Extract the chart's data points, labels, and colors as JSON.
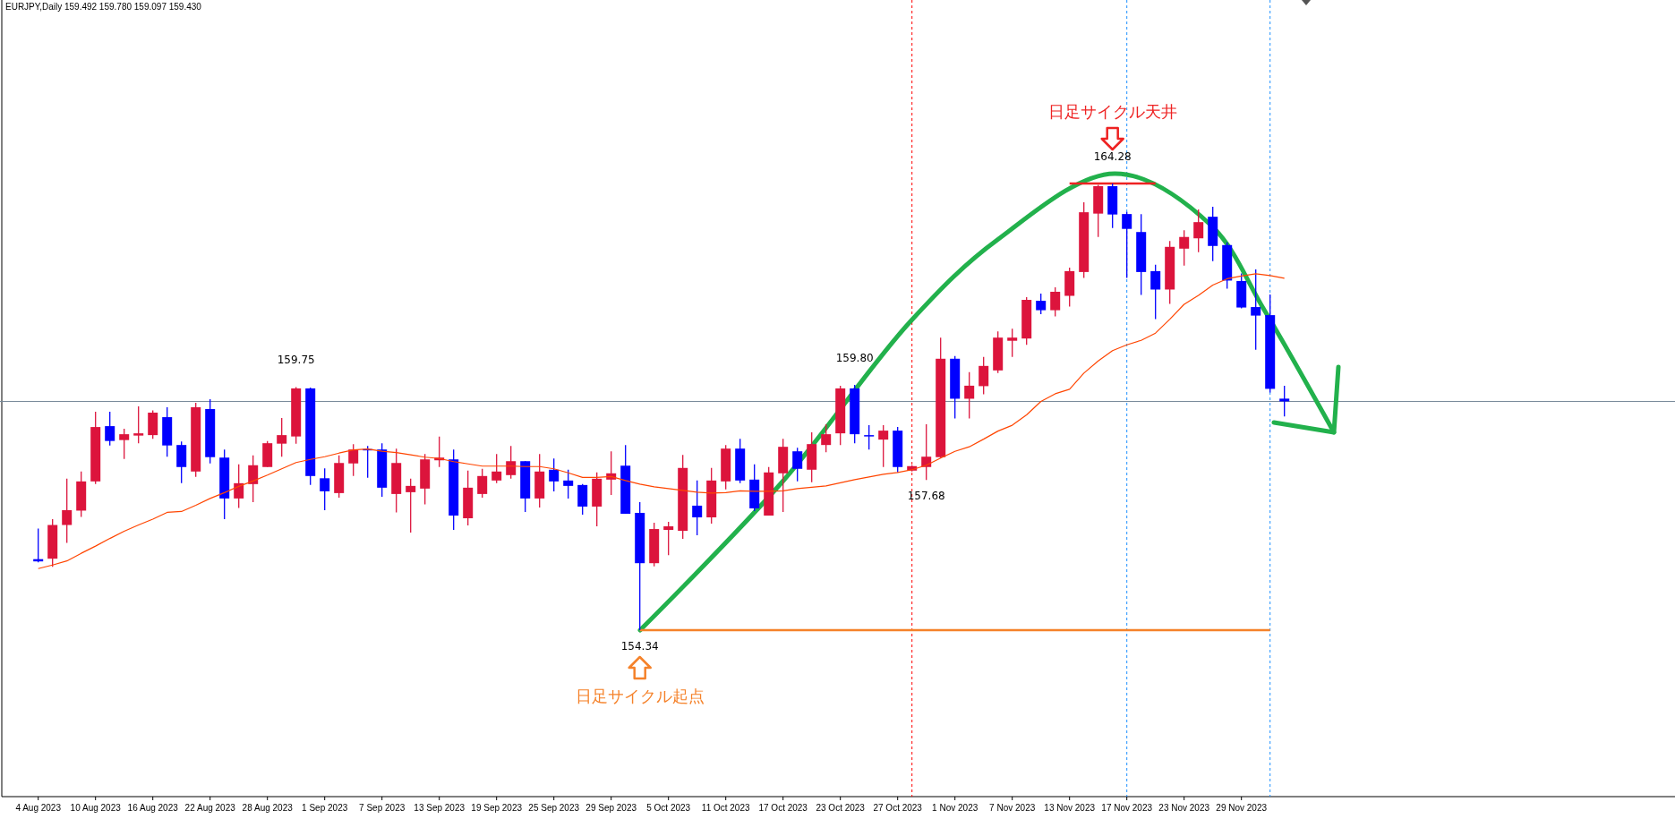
{
  "chart_data": {
    "type": "candlestick",
    "title": "EURJPY,Daily  159.492 159.780 159.097 159.430",
    "categories": [
      "4 Aug 2023",
      null,
      null,
      null,
      "10 Aug 2023",
      null,
      null,
      null,
      "16 Aug 2023",
      null,
      null,
      null,
      "22 Aug 2023",
      null,
      null,
      null,
      "28 Aug 2023",
      null,
      null,
      null,
      "1 Sep 2023",
      null,
      null,
      null,
      "7 Sep 2023",
      null,
      null,
      null,
      "13 Sep 2023",
      null,
      null,
      null,
      "19 Sep 2023",
      null,
      null,
      null,
      "25 Sep 2023",
      null,
      null,
      null,
      "29 Sep 2023",
      null,
      null,
      null,
      "5 Oct 2023",
      null,
      null,
      null,
      "11 Oct 2023",
      null,
      null,
      null,
      "17 Oct 2023",
      null,
      null,
      null,
      "23 Oct 2023",
      null,
      null,
      null,
      "27 Oct 2023",
      null,
      null,
      null,
      "1 Nov 2023",
      null,
      null,
      null,
      "7 Nov 2023",
      null,
      null,
      null,
      "13 Nov 2023",
      null,
      null,
      null,
      "17 Nov 2023",
      null,
      null,
      null,
      "23 Nov 2023",
      null,
      null,
      null,
      "29 Nov 2023",
      null,
      null,
      null
    ],
    "ohlc": [
      [
        155.92,
        156.6,
        155.85,
        155.87
      ],
      [
        155.93,
        156.81,
        155.75,
        156.68
      ],
      [
        156.68,
        157.71,
        156.28,
        157.01
      ],
      [
        157.0,
        157.87,
        156.86,
        157.65
      ],
      [
        157.65,
        159.2,
        157.59,
        158.86
      ],
      [
        158.88,
        159.2,
        158.45,
        158.55
      ],
      [
        158.57,
        158.82,
        158.15,
        158.7
      ],
      [
        158.67,
        159.32,
        158.5,
        158.72
      ],
      [
        158.68,
        159.23,
        158.6,
        159.18
      ],
      [
        159.08,
        159.3,
        158.2,
        158.45
      ],
      [
        158.46,
        158.54,
        157.61,
        157.97
      ],
      [
        157.87,
        159.4,
        157.75,
        159.3
      ],
      [
        159.26,
        159.48,
        158.05,
        158.19
      ],
      [
        158.18,
        158.36,
        156.81,
        157.27
      ],
      [
        157.27,
        158.03,
        157.06,
        157.61
      ],
      [
        157.59,
        158.23,
        157.19,
        158.01
      ],
      [
        157.97,
        158.55,
        157.97,
        158.5
      ],
      [
        158.49,
        159.06,
        158.2,
        158.68
      ],
      [
        158.65,
        159.75,
        158.49,
        159.72
      ],
      [
        159.72,
        159.74,
        157.57,
        157.77
      ],
      [
        157.72,
        157.94,
        157.01,
        157.43
      ],
      [
        157.39,
        158.23,
        157.29,
        158.06
      ],
      [
        158.05,
        158.48,
        157.77,
        158.36
      ],
      [
        158.37,
        158.44,
        157.73,
        158.34
      ],
      [
        158.36,
        158.5,
        157.31,
        157.51
      ],
      [
        157.37,
        158.38,
        156.96,
        158.06
      ],
      [
        157.41,
        157.71,
        156.51,
        157.55
      ],
      [
        157.49,
        158.26,
        157.14,
        158.14
      ],
      [
        158.12,
        158.65,
        157.97,
        158.18
      ],
      [
        158.14,
        158.36,
        156.57,
        156.89
      ],
      [
        156.83,
        157.89,
        156.67,
        157.51
      ],
      [
        157.37,
        157.93,
        157.29,
        157.77
      ],
      [
        157.67,
        158.26,
        157.61,
        157.87
      ],
      [
        157.79,
        158.44,
        157.71,
        158.1
      ],
      [
        158.1,
        158.1,
        156.97,
        157.27
      ],
      [
        157.27,
        158.26,
        157.07,
        157.87
      ],
      [
        157.91,
        158.16,
        157.43,
        157.65
      ],
      [
        157.67,
        157.91,
        157.27,
        157.55
      ],
      [
        157.57,
        157.59,
        156.91,
        157.09
      ],
      [
        157.09,
        157.85,
        156.65,
        157.71
      ],
      [
        157.69,
        158.32,
        157.35,
        157.83
      ],
      [
        158.0,
        158.46,
        156.93,
        156.93
      ],
      [
        156.95,
        157.19,
        154.34,
        155.83
      ],
      [
        155.83,
        156.73,
        155.76,
        156.59
      ],
      [
        156.57,
        156.75,
        156.01,
        156.65
      ],
      [
        156.55,
        158.24,
        156.37,
        157.95
      ],
      [
        157.11,
        157.67,
        156.45,
        156.85
      ],
      [
        156.85,
        157.95,
        156.71,
        157.67
      ],
      [
        157.65,
        158.46,
        157.47,
        158.38
      ],
      [
        158.38,
        158.6,
        157.61,
        157.67
      ],
      [
        157.69,
        158.03,
        156.99,
        157.05
      ],
      [
        156.89,
        157.97,
        156.89,
        157.85
      ],
      [
        157.83,
        158.6,
        156.97,
        158.42
      ],
      [
        158.32,
        158.4,
        157.65,
        157.93
      ],
      [
        157.91,
        158.74,
        157.63,
        158.48
      ],
      [
        158.46,
        158.92,
        158.3,
        158.7
      ],
      [
        158.72,
        159.78,
        158.46,
        159.72
      ],
      [
        159.72,
        159.8,
        158.5,
        158.7
      ],
      [
        158.68,
        158.9,
        158.36,
        158.67
      ],
      [
        158.58,
        158.9,
        157.97,
        158.78
      ],
      [
        158.78,
        158.86,
        157.85,
        157.97
      ],
      [
        157.89,
        158.01,
        157.87,
        157.99
      ],
      [
        157.97,
        158.92,
        157.68,
        158.2
      ],
      [
        158.19,
        160.85,
        158.17,
        160.38
      ],
      [
        160.38,
        160.44,
        159.05,
        159.49
      ],
      [
        159.49,
        160.08,
        159.05,
        159.78
      ],
      [
        159.77,
        160.42,
        159.59,
        160.22
      ],
      [
        160.12,
        160.99,
        160.06,
        160.85
      ],
      [
        160.78,
        161.05,
        160.42,
        160.85
      ],
      [
        160.83,
        161.75,
        160.69,
        161.69
      ],
      [
        161.67,
        161.83,
        161.37,
        161.46
      ],
      [
        161.46,
        161.97,
        161.32,
        161.87
      ],
      [
        161.78,
        162.41,
        161.54,
        162.33
      ],
      [
        162.31,
        163.86,
        162.18,
        163.64
      ],
      [
        163.61,
        164.25,
        163.09,
        164.22
      ],
      [
        164.22,
        164.28,
        163.29,
        163.59
      ],
      [
        163.6,
        163.65,
        162.18,
        163.27
      ],
      [
        163.2,
        163.6,
        161.8,
        162.31
      ],
      [
        162.33,
        162.47,
        161.26,
        161.92
      ],
      [
        161.92,
        163.0,
        161.6,
        162.87
      ],
      [
        162.83,
        163.24,
        162.45,
        163.09
      ],
      [
        163.06,
        163.7,
        162.75,
        163.42
      ],
      [
        163.54,
        163.76,
        162.55,
        162.89
      ],
      [
        162.91,
        162.97,
        161.94,
        162.12
      ],
      [
        162.11,
        162.28,
        161.5,
        161.52
      ],
      [
        161.53,
        162.37,
        160.58,
        161.34
      ],
      [
        161.35,
        161.81,
        159.63,
        159.71
      ],
      [
        159.492,
        159.78,
        159.097,
        159.43
      ]
    ],
    "colors": [
      "#0000ff",
      "#dc143c",
      "#dc143c",
      "#dc143c",
      "#dc143c",
      "#0000ff",
      "#dc143c",
      "#dc143c",
      "#dc143c",
      "#0000ff",
      "#0000ff",
      "#dc143c",
      "#0000ff",
      "#0000ff",
      "#dc143c",
      "#dc143c",
      "#dc143c",
      "#dc143c",
      "#dc143c",
      "#0000ff",
      "#0000ff",
      "#dc143c",
      "#dc143c",
      "#0000ff",
      "#0000ff",
      "#dc143c",
      "#dc143c",
      "#dc143c",
      "#dc143c",
      "#0000ff",
      "#dc143c",
      "#dc143c",
      "#dc143c",
      "#dc143c",
      "#0000ff",
      "#dc143c",
      "#0000ff",
      "#0000ff",
      "#0000ff",
      "#dc143c",
      "#dc143c",
      "#0000ff",
      "#0000ff",
      "#dc143c",
      "#dc143c",
      "#dc143c",
      "#0000ff",
      "#dc143c",
      "#dc143c",
      "#0000ff",
      "#0000ff",
      "#dc143c",
      "#dc143c",
      "#0000ff",
      "#dc143c",
      "#dc143c",
      "#dc143c",
      "#0000ff",
      "#0000ff",
      "#dc143c",
      "#0000ff",
      "#dc143c",
      "#dc143c",
      "#dc143c",
      "#0000ff",
      "#dc143c",
      "#dc143c",
      "#dc143c",
      "#dc143c",
      "#dc143c",
      "#0000ff",
      "#dc143c",
      "#dc143c",
      "#dc143c",
      "#dc143c",
      "#0000ff",
      "#0000ff",
      "#0000ff",
      "#0000ff",
      "#dc143c",
      "#dc143c",
      "#dc143c",
      "#0000ff",
      "#0000ff",
      "#0000ff",
      "#0000ff",
      "#0000ff",
      "#0000ff"
    ],
    "series": [
      {
        "type": "line",
        "color": "#ff4500",
        "values": [
          155.71,
          155.79,
          155.88,
          156.05,
          156.21,
          156.38,
          156.54,
          156.68,
          156.81,
          156.96,
          156.98,
          157.12,
          157.27,
          157.4,
          157.54,
          157.66,
          157.79,
          157.93,
          158.07,
          158.14,
          158.2,
          158.28,
          158.35,
          158.37,
          158.32,
          158.29,
          158.24,
          158.19,
          158.16,
          158.09,
          158.04,
          157.99,
          157.99,
          157.99,
          157.98,
          157.98,
          157.93,
          157.84,
          157.74,
          157.74,
          157.76,
          157.67,
          157.59,
          157.53,
          157.49,
          157.45,
          157.41,
          157.39,
          157.4,
          157.44,
          157.43,
          157.43,
          157.44,
          157.49,
          157.52,
          157.55,
          157.62,
          157.69,
          157.75,
          157.81,
          157.85,
          157.91,
          158.01,
          158.17,
          158.32,
          158.42,
          158.59,
          158.77,
          158.9,
          159.13,
          159.43,
          159.6,
          159.7,
          160.06,
          160.33,
          160.56,
          160.69,
          160.79,
          160.95,
          161.26,
          161.59,
          161.79,
          162.02,
          162.16,
          162.22,
          162.27,
          162.23,
          162.17
        ]
      },
      {
        "type": "line",
        "color": "#ee2222",
        "values": [
          null,
          null,
          null,
          null,
          null,
          null,
          null,
          null,
          null,
          null,
          null,
          null,
          null,
          null,
          null,
          null,
          null,
          null,
          null,
          null,
          null,
          null,
          null,
          null,
          null,
          null,
          null,
          null,
          null,
          null,
          null,
          null,
          null,
          null,
          null,
          null,
          null,
          null,
          null,
          null,
          null,
          null,
          null,
          null,
          null,
          null,
          null,
          null,
          null,
          null,
          null,
          null,
          null,
          null,
          null,
          null,
          null,
          null,
          null,
          null,
          null,
          null,
          null,
          null,
          null,
          null,
          null,
          null,
          null,
          null,
          null,
          null,
          164.28,
          164.28,
          164.28,
          164.28,
          164.28,
          164.28,
          164.28,
          null,
          null,
          null,
          null,
          null,
          null,
          null,
          null,
          null
        ]
      },
      {
        "type": "line",
        "color": "#f5822a",
        "values": [
          null,
          null,
          null,
          null,
          null,
          null,
          null,
          null,
          null,
          null,
          null,
          null,
          null,
          null,
          null,
          null,
          null,
          null,
          null,
          null,
          null,
          null,
          null,
          null,
          null,
          null,
          null,
          null,
          null,
          null,
          null,
          null,
          null,
          null,
          null,
          null,
          null,
          null,
          null,
          null,
          null,
          null,
          154.34,
          154.34,
          154.34,
          154.34,
          154.34,
          154.34,
          154.34,
          154.34,
          154.34,
          154.34,
          154.34,
          154.34,
          154.34,
          154.34,
          154.34,
          154.34,
          154.34,
          154.34,
          154.34,
          154.34,
          154.34,
          154.34,
          154.34,
          154.34,
          154.34,
          154.34,
          154.34,
          154.34,
          154.34,
          154.34,
          154.34,
          154.34,
          154.34,
          154.34,
          154.34,
          154.34,
          154.34,
          154.34,
          154.34,
          154.34,
          154.34,
          154.34,
          154.34,
          154.34,
          154.34,
          null
        ]
      }
    ],
    "ref_lines": [
      {
        "axis": "y",
        "value": 159.43,
        "color": "#778899",
        "line_style": "solid"
      }
    ],
    "annotations": [
      {
        "text": "159.75",
        "y": 159.75
      },
      {
        "text": "159.80",
        "y": 159.8
      },
      {
        "text": "157.68",
        "y": 157.68
      },
      {
        "text": "164.28",
        "y": 164.28
      },
      "日足サイクル天井",
      {
        "text": "154.34",
        "y": 154.34
      },
      "日足サイクル起点"
    ],
    "tick_labels": "x"
  }
}
